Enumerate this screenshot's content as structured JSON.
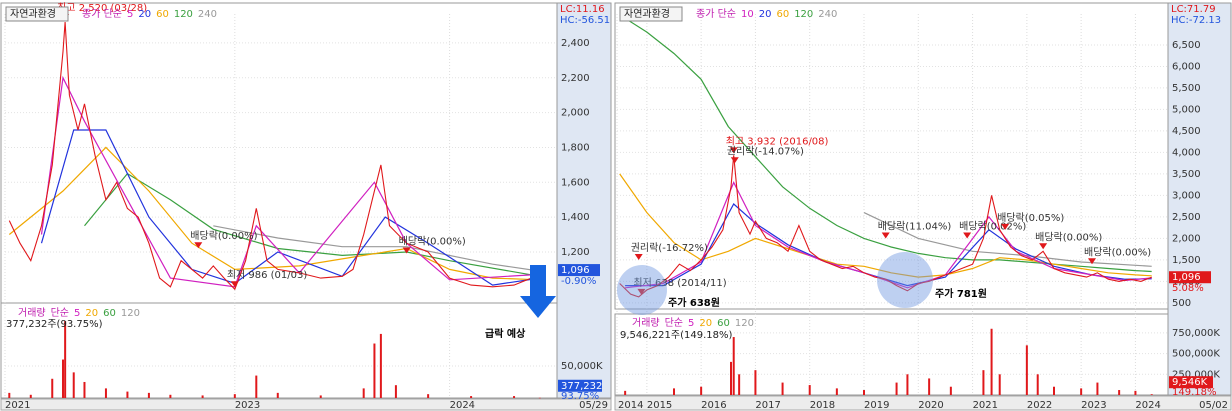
{
  "chart_data": [
    {
      "type": "line",
      "stock": "자연과환경",
      "legend_prefix": "종가 단순",
      "lc": "LC:11.16",
      "hc": "HC:-56.51",
      "xlim": [
        2021.93,
        2024.5
      ],
      "xticks": [
        {
          "value": 2021.93,
          "label": "2021"
        },
        2023,
        2024
      ],
      "last_date": "05/29",
      "ylim": [
        907,
        2566
      ],
      "yticks": [
        {
          "value": 1200,
          "label": "1,200"
        },
        {
          "value": 1400,
          "label": "1,400"
        },
        {
          "value": 1600,
          "label": "1,600"
        },
        {
          "value": 1800,
          "label": "1,800"
        },
        {
          "value": 2000,
          "label": "2,000"
        },
        {
          "value": 2200,
          "label": "2,200"
        },
        {
          "value": 2400,
          "label": "2,400"
        }
      ],
      "last_price": 1096,
      "last_price_label": "1,096",
      "change_label": "-0.90%",
      "close_color": "#e0181b",
      "last_color": "#2255dd",
      "close": {
        "x": [
          2021.95,
          2022.0,
          2022.05,
          2022.1,
          2022.15,
          2022.2,
          2022.21,
          2022.23,
          2022.27,
          2022.3,
          2022.35,
          2022.4,
          2022.45,
          2022.5,
          2022.55,
          2022.6,
          2022.65,
          2022.7,
          2022.75,
          2022.8,
          2022.85,
          2022.9,
          2022.95,
          2023.0,
          2023.05,
          2023.1,
          2023.15,
          2023.2,
          2023.3,
          2023.4,
          2023.5,
          2023.55,
          2023.6,
          2023.65,
          2023.68,
          2023.72,
          2023.8,
          2023.9,
          2024.0,
          2024.1,
          2024.2,
          2024.3,
          2024.38,
          2024.42
        ],
        "values": [
          1380,
          1250,
          1150,
          1350,
          1700,
          2350,
          2520,
          2100,
          1900,
          2050,
          1750,
          1500,
          1600,
          1450,
          1400,
          1250,
          1050,
          1000,
          1150,
          1100,
          1050,
          1120,
          1050,
          986,
          1150,
          1450,
          1150,
          1100,
          1080,
          1050,
          1060,
          1100,
          1300,
          1550,
          1700,
          1350,
          1250,
          1200,
          1050,
          1010,
          1000,
          1010,
          1050,
          1096
        ]
      },
      "series": [
        {
          "name": "5",
          "color": "#d020c0",
          "x": [
            2022.1,
            2022.2,
            2022.3,
            2022.5,
            2022.7,
            2023.0,
            2023.1,
            2023.3,
            2023.65,
            2023.8,
            2024.0,
            2024.4
          ],
          "values": [
            1300,
            2200,
            1950,
            1500,
            1050,
            1000,
            1350,
            1080,
            1600,
            1250,
            1040,
            1070
          ]
        },
        {
          "name": "20",
          "color": "#2233dd",
          "x": [
            2022.1,
            2022.25,
            2022.4,
            2022.6,
            2022.8,
            2023.0,
            2023.2,
            2023.5,
            2023.7,
            2023.9,
            2024.2,
            2024.42
          ],
          "values": [
            1250,
            1900,
            1900,
            1400,
            1100,
            1020,
            1200,
            1060,
            1400,
            1250,
            1010,
            1050
          ]
        },
        {
          "name": "60",
          "color": "#f0a800",
          "x": [
            2021.95,
            2022.2,
            2022.4,
            2022.6,
            2022.8,
            2023.0,
            2023.3,
            2023.6,
            2023.8,
            2024.0,
            2024.2,
            2024.42
          ],
          "values": [
            1300,
            1550,
            1800,
            1550,
            1250,
            1100,
            1120,
            1180,
            1220,
            1100,
            1050,
            1040
          ]
        },
        {
          "name": "120",
          "color": "#3aa040",
          "x": [
            2022.3,
            2022.5,
            2022.7,
            2022.9,
            2023.2,
            2023.5,
            2023.8,
            2024.0,
            2024.42
          ],
          "values": [
            1350,
            1650,
            1500,
            1330,
            1220,
            1180,
            1200,
            1150,
            1060
          ]
        },
        {
          "name": "240",
          "color": "#999999",
          "x": [
            2022.9,
            2023.2,
            2023.5,
            2023.8,
            2024.2,
            2024.42
          ],
          "values": [
            1350,
            1280,
            1230,
            1230,
            1130,
            1090
          ]
        }
      ],
      "annotations": [
        {
          "text": "최고 2,520 (03/28)",
          "x": 2022.21,
          "y": 2520
        },
        {
          "text": "최저 986 (01/03)",
          "x": 2023.0,
          "y": 986
        },
        {
          "text": "배당락(0.00%)",
          "x": 2022.83,
          "y": 1210
        },
        {
          "text": "배당락(0.00%)",
          "x": 2023.8,
          "y": 1180
        }
      ],
      "volume": {
        "legend": "거래량",
        "legend_prefix": "단순",
        "ma_names": [
          {
            "name": "5",
            "color": "#d020c0"
          },
          {
            "name": "20",
            "color": "#f0a800"
          },
          {
            "name": "60",
            "color": "#3aa040"
          },
          {
            "name": "120",
            "color": "#999999"
          }
        ],
        "summary": "377,232주(93.75%)",
        "ylim": [
          0,
          142000000
        ],
        "yticks": [
          {
            "value": 50000000,
            "label": "50,000K"
          }
        ],
        "color": "#e0181b",
        "x": [
          2021.95,
          2022.05,
          2022.15,
          2022.2,
          2022.21,
          2022.25,
          2022.3,
          2022.4,
          2022.5,
          2022.6,
          2022.7,
          2022.85,
          2023.0,
          2023.1,
          2023.2,
          2023.4,
          2023.6,
          2023.65,
          2023.68,
          2023.75,
          2023.9,
          2024.1,
          2024.3,
          2024.42
        ],
        "values": [
          8000000,
          5000000,
          30000000,
          60000000,
          120000000,
          40000000,
          25000000,
          15000000,
          10000000,
          8000000,
          5000000,
          4000000,
          6000000,
          35000000,
          8000000,
          4000000,
          15000000,
          85000000,
          100000000,
          20000000,
          6000000,
          3000000,
          3000000,
          377232
        ],
        "last_label": "377,232",
        "ratio_label": "93.75%"
      }
    },
    {
      "type": "line",
      "stock": "자연과환경",
      "legend_prefix": "종가 단순",
      "lc": "LC:71.79",
      "hc": "HC:-72.13",
      "xlim": [
        2014.45,
        2024.6
      ],
      "xticks": [
        {
          "value": 2014.45,
          "label": "2014"
        },
        2015,
        2016,
        2017,
        2018,
        2019,
        2020,
        2021,
        2022,
        2023,
        2024
      ],
      "last_date": "05/02",
      "ylim": [
        380,
        7220
      ],
      "yticks": [
        500,
        {
          "value": 1000,
          "label": "1,000"
        },
        {
          "value": 1500,
          "label": "1,500"
        },
        {
          "value": 2000,
          "label": "2,000"
        },
        {
          "value": 2500,
          "label": "2,500"
        },
        {
          "value": 3000,
          "label": "3,000"
        },
        {
          "value": 3500,
          "label": "3,500"
        },
        {
          "value": 4000,
          "label": "4,000"
        },
        {
          "value": 4500,
          "label": "4,500"
        },
        {
          "value": 5000,
          "label": "5,000"
        },
        {
          "value": 5500,
          "label": "5,500"
        },
        {
          "value": 6000,
          "label": "6,000"
        },
        {
          "value": 6500,
          "label": "6,500"
        }
      ],
      "last_price": 1096,
      "last_price_label": "1,096",
      "change_label": "5.08%",
      "close_color": "#e0181b",
      "last_color": "#e0181b",
      "close": {
        "x": [
          2014.5,
          2014.7,
          2014.85,
          2015.0,
          2015.2,
          2015.4,
          2015.6,
          2015.8,
          2016.0,
          2016.2,
          2016.4,
          2016.55,
          2016.6,
          2016.7,
          2016.9,
          2017.0,
          2017.2,
          2017.4,
          2017.6,
          2017.8,
          2018.0,
          2018.2,
          2018.4,
          2018.6,
          2018.8,
          2019.0,
          2019.2,
          2019.4,
          2019.6,
          2019.8,
          2020.0,
          2020.2,
          2020.4,
          2020.6,
          2020.8,
          2021.0,
          2021.2,
          2021.35,
          2021.5,
          2021.7,
          2021.9,
          2022.1,
          2022.3,
          2022.5,
          2022.7,
          2022.9,
          2023.1,
          2023.3,
          2023.5,
          2023.7,
          2023.9,
          2024.1,
          2024.3
        ],
        "values": [
          950,
          700,
          638,
          800,
          900,
          1100,
          1400,
          1250,
          1500,
          1800,
          2200,
          3200,
          3932,
          2600,
          2100,
          2400,
          2000,
          1900,
          1700,
          2300,
          1700,
          1500,
          1400,
          1300,
          1350,
          1200,
          1100,
          1050,
          900,
          781,
          950,
          1000,
          1100,
          1200,
          1300,
          1400,
          2000,
          3000,
          2200,
          1800,
          1600,
          1500,
          1700,
          1300,
          1200,
          1150,
          1100,
          1200,
          1050,
          1000,
          1050,
          1000,
          1096
        ]
      },
      "series": [
        {
          "name": "10",
          "color": "#d020c0",
          "x": [
            2014.6,
            2015.3,
            2016.0,
            2016.6,
            2017.0,
            2017.6,
            2018.3,
            2019.0,
            2019.8,
            2020.5,
            2021.3,
            2021.8,
            2022.5,
            2023.2,
            2023.8,
            2024.3
          ],
          "values": [
            850,
            950,
            1450,
            3300,
            2300,
            1800,
            1450,
            1200,
            850,
            1150,
            2500,
            1700,
            1300,
            1150,
            1020,
            1080
          ]
        },
        {
          "name": "20",
          "color": "#2233dd",
          "x": [
            2014.6,
            2015.3,
            2016.0,
            2016.6,
            2017.0,
            2017.6,
            2018.3,
            2019.0,
            2019.8,
            2020.5,
            2021.3,
            2021.8,
            2022.5,
            2023.2,
            2023.8,
            2024.3
          ],
          "values": [
            900,
            900,
            1400,
            2800,
            2350,
            1850,
            1450,
            1200,
            900,
            1100,
            2200,
            1750,
            1350,
            1150,
            1050,
            1060
          ]
        },
        {
          "name": "60",
          "color": "#f0a800",
          "x": [
            2014.5,
            2015.0,
            2015.5,
            2016.0,
            2016.5,
            2017.0,
            2017.5,
            2018.0,
            2018.5,
            2019.0,
            2019.5,
            2020.0,
            2020.5,
            2021.0,
            2021.5,
            2022.0,
            2022.5,
            2023.0,
            2023.5,
            2024.0,
            2024.3
          ],
          "values": [
            3500,
            2600,
            1900,
            1500,
            1700,
            2000,
            1800,
            1600,
            1400,
            1350,
            1200,
            1100,
            1150,
            1300,
            1550,
            1500,
            1400,
            1300,
            1200,
            1150,
            1130
          ]
        },
        {
          "name": "120",
          "color": "#3aa040",
          "x": [
            2014.5,
            2015.0,
            2015.5,
            2016.0,
            2016.5,
            2017.0,
            2017.5,
            2018.0,
            2018.5,
            2019.0,
            2019.5,
            2020.0,
            2020.5,
            2021.0,
            2021.5,
            2022.0,
            2022.5,
            2023.0,
            2023.5,
            2024.0,
            2024.3
          ],
          "values": [
            7200,
            6800,
            6300,
            5700,
            4600,
            3900,
            3200,
            2700,
            2300,
            2000,
            1800,
            1650,
            1550,
            1500,
            1500,
            1450,
            1400,
            1350,
            1300,
            1250,
            1230
          ]
        },
        {
          "name": "240",
          "color": "#999999",
          "x": [
            2019.0,
            2020.0,
            2021.0,
            2022.0,
            2023.0,
            2024.3
          ],
          "values": [
            2600,
            2000,
            1700,
            1600,
            1450,
            1350
          ]
        }
      ],
      "annotations": [
        {
          "text": "최고 3,932 (2016/08)",
          "x": 2016.6,
          "y": 3932
        },
        {
          "text": "권리락(-14.07%)",
          "x": 2016.62,
          "y": 3700
        },
        {
          "text": "권리락(-16.72%)",
          "x": 2014.85,
          "y": 1450
        },
        {
          "text": "최저 638 (2014/11)",
          "x": 2014.9,
          "y": 638
        },
        {
          "text": "배당락(11.04%)",
          "x": 2019.4,
          "y": 1950
        },
        {
          "text": "배당락(0.02%)",
          "x": 2020.9,
          "y": 1950
        },
        {
          "text": "배당락(0.05%)",
          "x": 2021.6,
          "y": 2150
        },
        {
          "text": "배당락(0.00%)",
          "x": 2022.3,
          "y": 1700
        },
        {
          "text": "배당락(0.00%)",
          "x": 2023.2,
          "y": 1350
        }
      ],
      "volume": {
        "legend": "거래량",
        "legend_prefix": "단순",
        "ma_names": [
          {
            "name": "5",
            "color": "#d020c0"
          },
          {
            "name": "20",
            "color": "#f0a800"
          },
          {
            "name": "60",
            "color": "#3aa040"
          },
          {
            "name": "120",
            "color": "#999999"
          }
        ],
        "summary": "9,546,221주(149.18%)",
        "ylim": [
          0,
          930000000
        ],
        "yticks": [
          {
            "value": 250000000,
            "label": "250,000K"
          },
          {
            "value": 500000000,
            "label": "500,000K"
          },
          {
            "value": 750000000,
            "label": "750,000K"
          }
        ],
        "color": "#e0181b",
        "x": [
          2014.6,
          2015.5,
          2016.0,
          2016.55,
          2016.6,
          2016.7,
          2017.0,
          2017.5,
          2018.0,
          2018.5,
          2019.0,
          2019.6,
          2019.8,
          2020.2,
          2020.6,
          2021.2,
          2021.35,
          2021.5,
          2022.0,
          2022.2,
          2022.5,
          2023.0,
          2023.3,
          2023.7,
          2024.0,
          2024.3
        ],
        "values": [
          50000000,
          80000000,
          100000000,
          400000000,
          700000000,
          250000000,
          300000000,
          150000000,
          120000000,
          80000000,
          60000000,
          150000000,
          250000000,
          200000000,
          100000000,
          300000000,
          800000000,
          250000000,
          600000000,
          250000000,
          100000000,
          80000000,
          150000000,
          60000000,
          50000000,
          9546221
        ],
        "last_label": "9,546K",
        "ratio_label": "149.18%"
      }
    }
  ],
  "overlay": {
    "forecast": "급락 예상",
    "low_note_1": "주가 638원",
    "low_note_2": "주가 781원"
  }
}
